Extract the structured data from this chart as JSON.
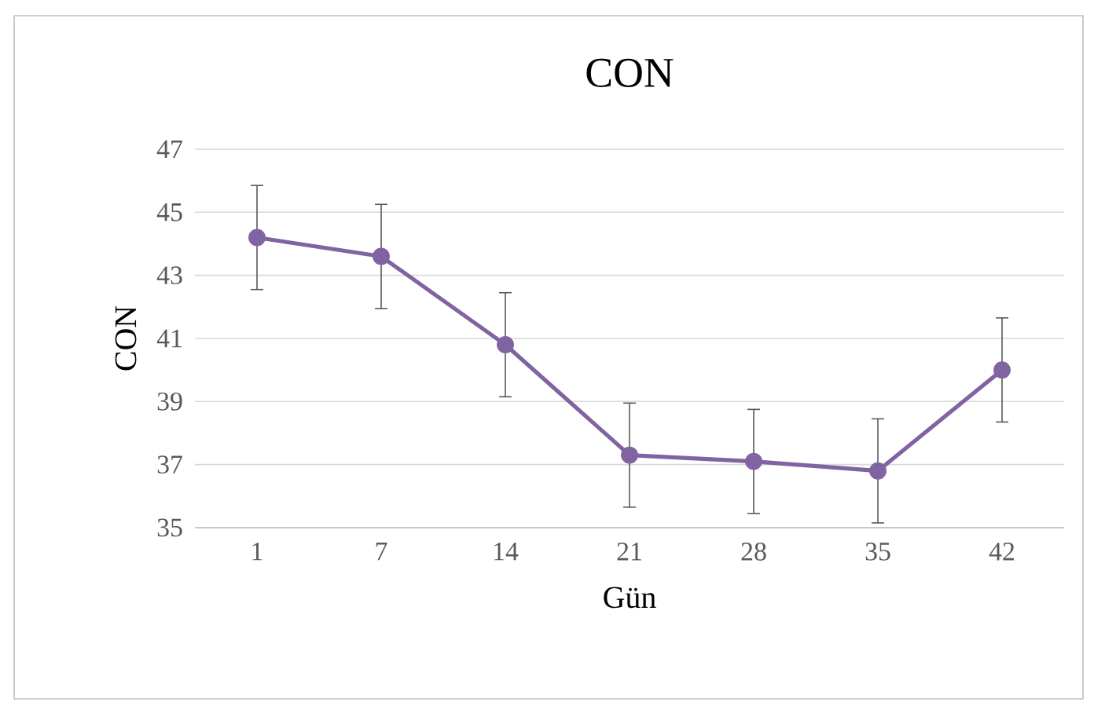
{
  "chart_data": {
    "type": "line",
    "title": "CON",
    "xlabel": "Gün",
    "ylabel": "CON",
    "categories": [
      "1",
      "7",
      "14",
      "21",
      "28",
      "35",
      "42"
    ],
    "series": [
      {
        "color": "#8064a2",
        "values": [
          44.2,
          43.6,
          40.8,
          37.3,
          37.1,
          36.8,
          40.0
        ],
        "errors": [
          1.65,
          1.65,
          1.65,
          1.65,
          1.65,
          1.65,
          1.65
        ]
      }
    ],
    "ylim": [
      35,
      47
    ],
    "yticks": [
      35,
      37,
      39,
      41,
      43,
      45,
      47
    ],
    "grid": "y",
    "marker": "circle",
    "line_style": "solid"
  }
}
